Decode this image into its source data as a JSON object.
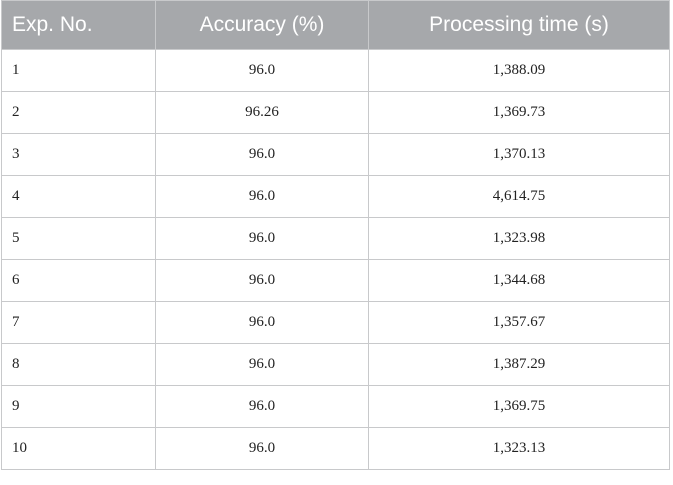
{
  "table": {
    "header": [
      "Exp. No.",
      "Accuracy (%)",
      "Processing time (s)"
    ],
    "rows": [
      [
        "1",
        "96.0",
        "1,388.09"
      ],
      [
        "2",
        "96.26",
        "1,369.73"
      ],
      [
        "3",
        "96.0",
        "1,370.13"
      ],
      [
        "4",
        "96.0",
        "4,614.75"
      ],
      [
        "5",
        "96.0",
        "1,323.98"
      ],
      [
        "6",
        "96.0",
        "1,344.68"
      ],
      [
        "7",
        "96.0",
        "1,357.67"
      ],
      [
        "8",
        "96.0",
        "1,387.29"
      ],
      [
        "9",
        "96.0",
        "1,369.75"
      ],
      [
        "10",
        "96.0",
        "1,323.13"
      ]
    ]
  }
}
